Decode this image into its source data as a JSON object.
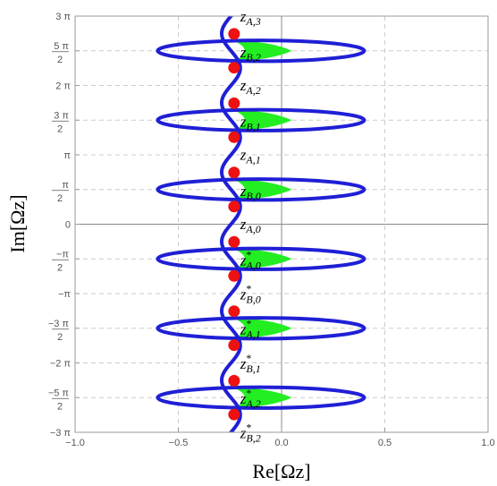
{
  "chart_data": {
    "type": "line",
    "xlabel": "Re[Ωz]",
    "ylabel": "Im[Ωz]",
    "xlim": [
      -1.0,
      1.0
    ],
    "ylim": [
      -9.4248,
      9.4248
    ],
    "grid": true,
    "x_ticks": [
      {
        "value": -1.0,
        "label": "−1.0"
      },
      {
        "value": -0.5,
        "label": "−0.5"
      },
      {
        "value": 0.0,
        "label": "0.0"
      },
      {
        "value": 0.5,
        "label": "0.5"
      },
      {
        "value": 1.0,
        "label": "1.0"
      }
    ],
    "y_ticks": [
      {
        "value": 9.4248,
        "num": "3 π",
        "den": ""
      },
      {
        "value": 7.854,
        "num": "5 π",
        "den": "2"
      },
      {
        "value": 6.2832,
        "num": "2 π",
        "den": ""
      },
      {
        "value": 4.7124,
        "num": "3 π",
        "den": "2"
      },
      {
        "value": 3.1416,
        "num": "π",
        "den": ""
      },
      {
        "value": 1.5708,
        "num": "π",
        "den": "2"
      },
      {
        "value": 0,
        "num": "0",
        "den": ""
      },
      {
        "value": -1.5708,
        "num": "−π",
        "den": "2"
      },
      {
        "value": -3.1416,
        "num": "−π",
        "den": ""
      },
      {
        "value": -4.7124,
        "num": "−3 π",
        "den": "2"
      },
      {
        "value": -6.2832,
        "num": "−2 π",
        "den": ""
      },
      {
        "value": -7.854,
        "num": "−5 π",
        "den": "2"
      },
      {
        "value": -9.4248,
        "num": "−3 π",
        "den": ""
      }
    ],
    "series": [
      {
        "kind": "ellipse-loops",
        "color": "#1f1fd6",
        "center_x": -0.1,
        "half_width": 0.5,
        "half_height": 0.47,
        "centers_y": [
          7.854,
          4.7124,
          1.5708,
          -1.5708,
          -4.7124,
          -7.854
        ]
      },
      {
        "kind": "wavy-line",
        "color": "#1f1fd6",
        "center_x": -0.245,
        "amplitude": 0.045,
        "period": 3.1416
      },
      {
        "kind": "crescents",
        "color": "#22ee22",
        "x_range": [
          -0.23,
          0.05
        ],
        "centers_y": [
          7.854,
          4.7124,
          1.5708,
          -1.5708,
          -4.7124,
          -7.854
        ]
      }
    ],
    "points": {
      "color": "#ee1111",
      "x": -0.23,
      "y": [
        8.62,
        7.09,
        5.48,
        3.94,
        2.34,
        0.8,
        -0.8,
        -2.34,
        -3.94,
        -5.48,
        -7.09,
        -8.62
      ]
    },
    "annotations": [
      {
        "base": "z",
        "sub": "A,3",
        "star": false,
        "x": -0.2,
        "y": 9.43
      },
      {
        "base": "z",
        "sub": "B,2",
        "star": false,
        "x": -0.2,
        "y": 7.8
      },
      {
        "base": "z",
        "sub": "A,2",
        "star": false,
        "x": -0.2,
        "y": 6.3
      },
      {
        "base": "z",
        "sub": "B,1",
        "star": false,
        "x": -0.2,
        "y": 4.66
      },
      {
        "base": "z",
        "sub": "A,1",
        "star": false,
        "x": -0.2,
        "y": 3.16
      },
      {
        "base": "z",
        "sub": "B,0",
        "star": false,
        "x": -0.2,
        "y": 1.52
      },
      {
        "base": "z",
        "sub": "A,0",
        "star": false,
        "x": -0.2,
        "y": 0.02
      },
      {
        "base": "z",
        "sub": "A,0",
        "star": true,
        "x": -0.2,
        "y": -1.62
      },
      {
        "base": "z",
        "sub": "B,0",
        "star": true,
        "x": -0.2,
        "y": -3.17
      },
      {
        "base": "z",
        "sub": "A,1",
        "star": true,
        "x": -0.2,
        "y": -4.74
      },
      {
        "base": "z",
        "sub": "B,1",
        "star": true,
        "x": -0.2,
        "y": -6.3
      },
      {
        "base": "z",
        "sub": "A,2",
        "star": true,
        "x": -0.2,
        "y": -7.88
      },
      {
        "base": "z",
        "sub": "B,2",
        "star": true,
        "x": -0.2,
        "y": -9.45
      }
    ]
  }
}
